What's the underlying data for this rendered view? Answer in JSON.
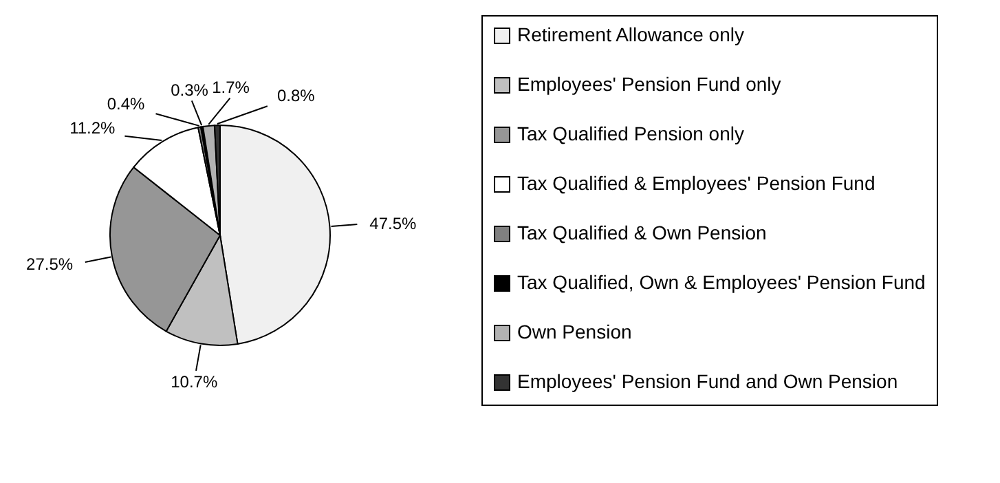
{
  "chart_data": {
    "type": "pie",
    "categories": [
      "Retirement Allowance only",
      "Employees' Pension Fund only",
      "Tax Qualified Pension only",
      "Tax Qualified & Employees' Pension Fund",
      "Tax Qualified & Own Pension",
      "Tax Qualified, Own & Employees' Pension Fund",
      "Own Pension",
      "Employees' Pension Fund and Own Pension"
    ],
    "values": [
      47.5,
      10.7,
      27.5,
      11.2,
      0.4,
      0.3,
      1.7,
      0.8
    ],
    "colors": [
      "#f0f0f0",
      "#c0c0c0",
      "#969696",
      "#ffffff",
      "#808080",
      "#000000",
      "#b2b2b2",
      "#333333"
    ],
    "value_labels": [
      "47.5%",
      "10.7%",
      "27.5%",
      "11.2%",
      "0.4%",
      "0.3%",
      "1.7%",
      "0.8%"
    ],
    "legend": "right"
  }
}
